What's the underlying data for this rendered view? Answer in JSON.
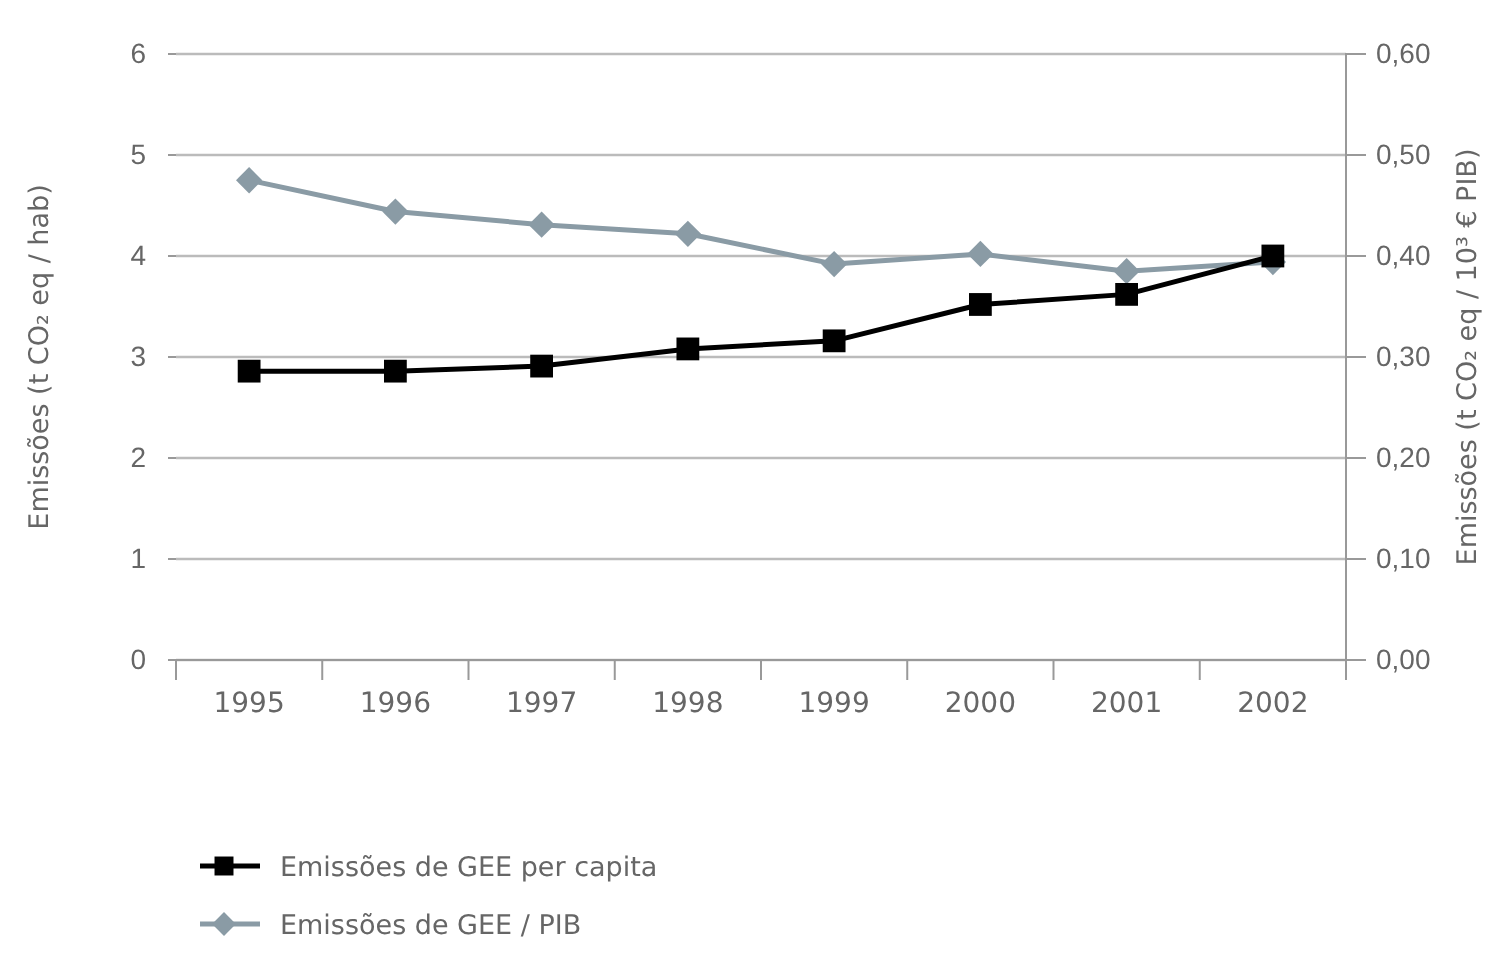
{
  "chart_data": {
    "type": "line",
    "ylabel": "Emissões (t CO₂ eq / hab)",
    "y2label": "Emissões (t CO₂ eq / 10³ € PIB)",
    "categories": [
      "1995",
      "1996",
      "1997",
      "1998",
      "1999",
      "2000",
      "2001",
      "2002"
    ],
    "series": [
      {
        "name": "Emissões de GEE per capita",
        "color": "#000000",
        "marker": "square",
        "values": [
          2.86,
          2.86,
          2.91,
          3.08,
          3.16,
          3.52,
          3.62,
          4.0
        ]
      },
      {
        "name": "Emissões de GEE / PIB",
        "color": "#8a9ba5",
        "marker": "diamond",
        "axis": "y2",
        "values": [
          0.475,
          0.444,
          0.431,
          0.422,
          0.392,
          0.402,
          0.385,
          0.394
        ]
      }
    ],
    "ylim": [
      0,
      6
    ],
    "yticks": [
      0,
      1,
      2,
      3,
      4,
      5,
      6
    ],
    "y2lim": [
      0,
      0.6
    ],
    "y2ticks": [
      {
        "value": 0,
        "label": "0,00"
      },
      {
        "value": 0.1,
        "label": "0,10"
      },
      {
        "value": 0.2,
        "label": "0,20"
      },
      {
        "value": 0.3,
        "label": "0,30"
      },
      {
        "value": 0.4,
        "label": "0,40"
      },
      {
        "value": 0.5,
        "label": "0,50"
      },
      {
        "value": 0.6,
        "label": "0,60"
      }
    ],
    "grid": "y",
    "legend": "bottom",
    "line_style": "solid"
  }
}
